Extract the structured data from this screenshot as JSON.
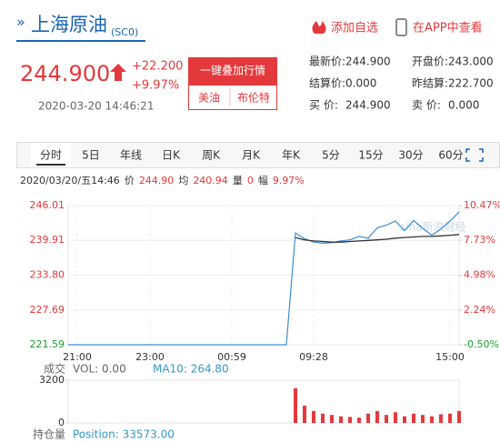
{
  "header": {
    "arrow": "»",
    "title": "上海原油",
    "code": "(SC0)",
    "add": "添加自选",
    "app": "在APP中查看"
  },
  "quote": {
    "price": "244.900",
    "change": "+22.200",
    "pct": "+9.97%",
    "time": "2020-03-20 14:46:21",
    "overlay": "一键叠加行情",
    "wti": "美油",
    "brent": "布伦特"
  },
  "stats": [
    [
      "最新价:",
      "244.900",
      "开盘价:",
      "243.000"
    ],
    [
      "结算价:",
      "0.000",
      "昨结算:",
      "222.700"
    ],
    [
      "买  价:",
      "244.900",
      "卖  价:",
      "0.000"
    ]
  ],
  "tabs": [
    "分时",
    "5日",
    "年线",
    "日K",
    "周K",
    "月K",
    "年K",
    "5分",
    "15分",
    "30分",
    "60分"
  ],
  "info": {
    "date": "2020/03/20/五14:46",
    "price_label": "价",
    "price": "244.90",
    "avg_label": "均",
    "avg": "240.94",
    "vol_label": "量",
    "vol": "0",
    "amp_label": "幅",
    "amp": "9.97%"
  },
  "watermark": "sina新浪财经",
  "volume_info": {
    "label": "成交",
    "vol": "VOL: 0.00",
    "ma": "MA10: 264.80"
  },
  "position_info": {
    "label": "持仓量",
    "position": "Position: 33573.00"
  },
  "chart_data": [
    {
      "type": "line",
      "categories": [
        null,
        "21:00",
        null,
        null,
        null,
        null,
        null,
        null,
        null,
        "23:00",
        null,
        null,
        null,
        null,
        null,
        null,
        null,
        null,
        "00:59",
        null,
        null,
        null,
        null,
        null,
        null,
        null,
        null,
        "09:28",
        null,
        null,
        null,
        null,
        null,
        null,
        null,
        null,
        null,
        null,
        null,
        null,
        null,
        null,
        "15:00",
        null
      ],
      "series": [
        {
          "color": "#3a8fd6",
          "values": [
            221.59,
            221.59,
            221.59,
            221.59,
            221.59,
            221.59,
            221.59,
            221.59,
            221.59,
            221.59,
            221.59,
            221.59,
            221.59,
            221.59,
            221.59,
            221.59,
            221.59,
            221.59,
            221.59,
            221.59,
            221.59,
            221.59,
            221.59,
            221.59,
            221.59,
            241.2,
            240.2,
            239.6,
            239.4,
            239.5,
            239.8,
            240.0,
            240.6,
            240.3,
            242.1,
            242.6,
            243.3,
            241.6,
            243.4,
            242.0,
            240.8,
            241.9,
            243.3,
            244.9
          ]
        },
        {
          "color": "#333333",
          "values": [
            null,
            null,
            null,
            null,
            null,
            null,
            null,
            null,
            null,
            null,
            null,
            null,
            null,
            null,
            null,
            null,
            null,
            null,
            null,
            null,
            null,
            null,
            null,
            null,
            null,
            240.4,
            240.0,
            239.8,
            239.7,
            239.6,
            239.6,
            239.7,
            239.8,
            239.9,
            240.0,
            240.1,
            240.3,
            240.4,
            240.5,
            240.6,
            240.6,
            240.7,
            240.8,
            240.94
          ]
        }
      ],
      "ylim": [
        221.59,
        246.01
      ],
      "yticks": [
        221.59,
        227.69,
        {
          "value": 233.8,
          "label": "233.80"
        },
        239.91,
        246.01
      ],
      "y2lim": [
        -0.5,
        10.47
      ],
      "y2ticks": [
        {
          "value": -0.5,
          "label": "-0.50%"
        },
        {
          "value": 2.24,
          "label": "2.24%"
        },
        {
          "value": 4.98,
          "label": "4.98%"
        },
        {
          "value": 7.73,
          "label": "7.73%"
        },
        {
          "value": 10.47,
          "label": "10.47%"
        }
      ],
      "grid": true
    },
    {
      "type": "bar",
      "color": "#e4393c",
      "values": [
        0,
        0,
        0,
        0,
        0,
        0,
        0,
        0,
        0,
        0,
        0,
        0,
        0,
        0,
        0,
        0,
        0,
        0,
        0,
        0,
        0,
        0,
        0,
        0,
        0,
        2600,
        1300,
        900,
        700,
        600,
        500,
        450,
        400,
        700,
        900,
        600,
        800,
        500,
        700,
        600,
        500,
        650,
        700,
        900
      ],
      "ylim": [
        0,
        3200
      ],
      "yticks": [
        0,
        3200
      ]
    }
  ]
}
